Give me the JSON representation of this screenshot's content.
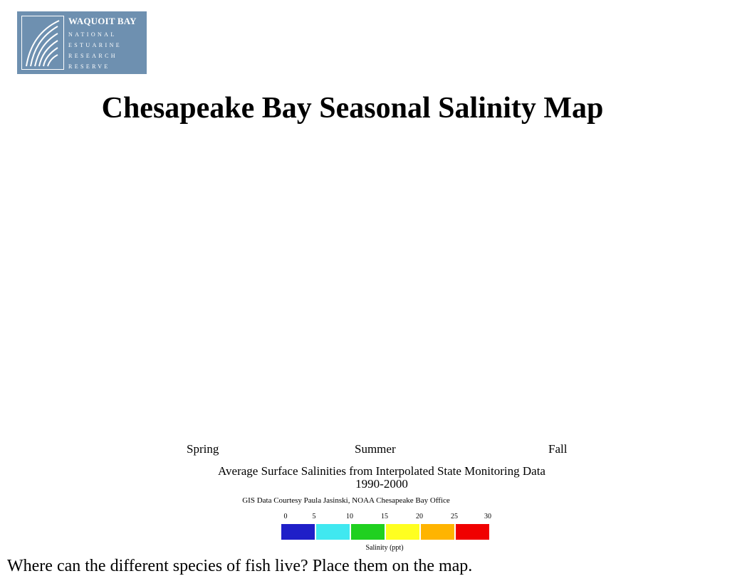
{
  "logo": {
    "title": "WAQUOIT BAY",
    "lines": [
      "NATIONAL",
      "ESTUARINE",
      "RESEARCH",
      "RESERVE"
    ],
    "icon": "marsh-grass-icon"
  },
  "title": "Chesapeake Bay Seasonal Salinity Map",
  "seasons": [
    "Spring",
    "Summer",
    "Fall"
  ],
  "caption_line1": "Average Surface Salinities from Interpolated State Monitoring Data",
  "caption_line2": "1990-2000",
  "credit": "GIS Data Courtesy Paula Jasinski, NOAA Chesapeake Bay Office",
  "legend": {
    "ticks": [
      "0",
      "5",
      "10",
      "15",
      "20",
      "25",
      "30"
    ],
    "label": "Salinity (ppt)",
    "colors": [
      "#1f1fc8",
      "#40e8f0",
      "#20d020",
      "#ffff20",
      "#ffb400",
      "#f00000"
    ]
  },
  "question": "Where can the different species of fish live?  Place them on the map.",
  "map_colors": {
    "fresh": "#1f1fc8",
    "low": "#40e8f0",
    "mid": "#20d020",
    "high": "#ffff20",
    "higher": "#ffb400",
    "highest": "#f00000"
  }
}
